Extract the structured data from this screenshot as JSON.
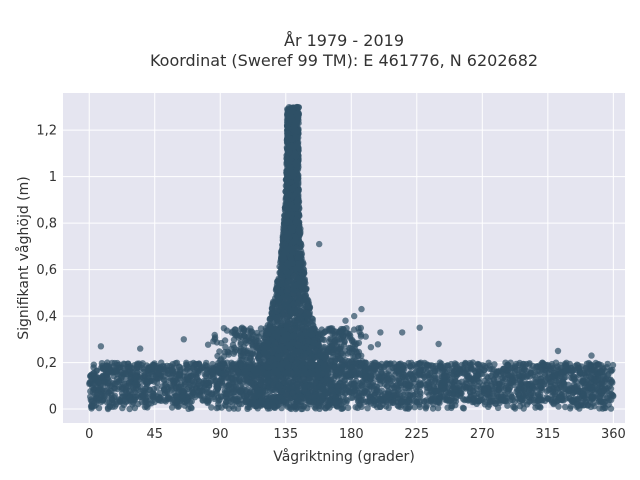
{
  "chart_data": {
    "type": "scatter",
    "title_line1": "År 1979 - 2019",
    "title_line2": "Koordinat (Sweref 99 TM): E 461776, N 6202682",
    "xlabel": "Vågriktning (grader)",
    "ylabel": "Signifikant våghöjd (m)",
    "xlim": [
      -18,
      368
    ],
    "ylim": [
      -0.06,
      1.36
    ],
    "x_ticks": [
      0,
      45,
      90,
      135,
      180,
      225,
      270,
      315,
      360
    ],
    "x_tick_labels": [
      "0",
      "45",
      "90",
      "135",
      "180",
      "225",
      "270",
      "315",
      "360"
    ],
    "y_ticks": [
      0,
      0.2,
      0.4,
      0.6,
      0.8,
      1.0,
      1.2
    ],
    "y_tick_labels": [
      "0",
      "0,2",
      "0,4",
      "0,6",
      "0,8",
      "1",
      "1,2"
    ],
    "grid": true,
    "marker_color": "#2f5066",
    "background_color": "#e5e5f0",
    "distribution": {
      "direction_range": [
        0,
        360
      ],
      "baseline_band": [
        0.03,
        0.2
      ],
      "peak_direction": 140,
      "peak_max_height": 1.3,
      "outliers": [
        [
          8,
          0.27
        ],
        [
          35,
          0.26
        ],
        [
          65,
          0.3
        ],
        [
          105,
          0.35
        ],
        [
          112,
          0.33
        ],
        [
          158,
          0.71
        ],
        [
          176,
          0.38
        ],
        [
          182,
          0.4
        ],
        [
          187,
          0.43
        ],
        [
          200,
          0.33
        ],
        [
          215,
          0.33
        ],
        [
          227,
          0.35
        ],
        [
          240,
          0.28
        ],
        [
          322,
          0.25
        ],
        [
          345,
          0.23
        ]
      ]
    }
  }
}
